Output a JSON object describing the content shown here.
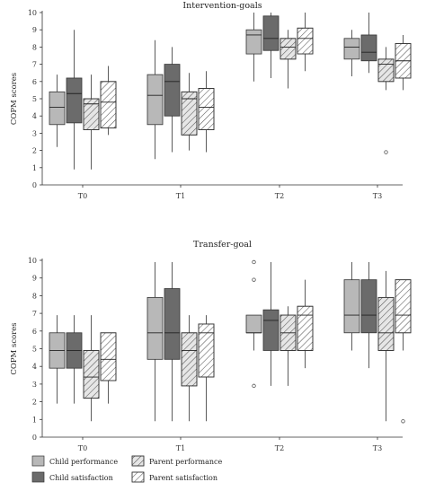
{
  "legend": [
    {
      "label": "Child performance",
      "fill": "#b8b8b8",
      "hatch": false
    },
    {
      "label": "Child satisfaction",
      "fill": "#6b6b6b",
      "hatch": false
    },
    {
      "label": "Parent performance",
      "fill": "#e6e6e6",
      "hatch": true
    },
    {
      "label": "Parent satisfaction",
      "fill": "#ffffff",
      "hatch": true
    }
  ],
  "chart_data": [
    {
      "type": "box",
      "title": "Intervention-goals",
      "ylabel": "COPM scores",
      "xlabel": "",
      "ylim": [
        0,
        10
      ],
      "yticks": [
        "0",
        "1",
        "2",
        "3",
        "4",
        "5",
        "6",
        "7",
        "8",
        "9",
        "10"
      ],
      "categories": [
        "T0",
        "T1",
        "T2",
        "T3"
      ],
      "grid": false,
      "series": [
        {
          "name": "Child performance",
          "boxes": [
            {
              "min": 2.2,
              "q1": 3.5,
              "median": 4.5,
              "q3": 5.4,
              "max": 6.4,
              "outliers": []
            },
            {
              "min": 1.5,
              "q1": 3.5,
              "median": 5.2,
              "q3": 6.4,
              "max": 8.4,
              "outliers": []
            },
            {
              "min": 6.0,
              "q1": 7.6,
              "median": 8.7,
              "q3": 9.0,
              "max": 10.0,
              "outliers": []
            },
            {
              "min": 6.3,
              "q1": 7.3,
              "median": 8.0,
              "q3": 8.5,
              "max": 9.0,
              "outliers": []
            }
          ]
        },
        {
          "name": "Child satisfaction",
          "boxes": [
            {
              "min": 0.9,
              "q1": 3.6,
              "median": 5.3,
              "q3": 6.2,
              "max": 9.0,
              "outliers": []
            },
            {
              "min": 1.9,
              "q1": 4.0,
              "median": 6.0,
              "q3": 7.0,
              "max": 8.0,
              "outliers": []
            },
            {
              "min": 6.2,
              "q1": 7.8,
              "median": 8.5,
              "q3": 9.8,
              "max": 10.0,
              "outliers": []
            },
            {
              "min": 6.5,
              "q1": 7.2,
              "median": 7.7,
              "q3": 8.7,
              "max": 10.0,
              "outliers": []
            }
          ]
        },
        {
          "name": "Parent performance",
          "boxes": [
            {
              "min": 0.9,
              "q1": 3.2,
              "median": 4.7,
              "q3": 5.0,
              "max": 6.4,
              "outliers": []
            },
            {
              "min": 2.0,
              "q1": 2.9,
              "median": 5.0,
              "q3": 5.4,
              "max": 6.5,
              "outliers": []
            },
            {
              "min": 5.6,
              "q1": 7.3,
              "median": 8.0,
              "q3": 8.5,
              "max": 9.0,
              "outliers": []
            },
            {
              "min": 5.5,
              "q1": 6.0,
              "median": 7.0,
              "q3": 7.3,
              "max": 8.0,
              "outliers": [
                1.9
              ]
            }
          ]
        },
        {
          "name": "Parent satisfaction",
          "boxes": [
            {
              "min": 2.9,
              "q1": 3.3,
              "median": 4.8,
              "q3": 6.0,
              "max": 6.9,
              "outliers": []
            },
            {
              "min": 1.9,
              "q1": 3.2,
              "median": 4.5,
              "q3": 5.6,
              "max": 6.6,
              "outliers": []
            },
            {
              "min": 6.6,
              "q1": 7.6,
              "median": 8.5,
              "q3": 9.1,
              "max": 10.0,
              "outliers": []
            },
            {
              "min": 5.5,
              "q1": 6.2,
              "median": 7.2,
              "q3": 8.2,
              "max": 8.7,
              "outliers": []
            }
          ]
        }
      ]
    },
    {
      "type": "box",
      "title": "Transfer-goal",
      "ylabel": "COPM scores",
      "xlabel": "",
      "ylim": [
        0,
        10
      ],
      "yticks": [
        "0",
        "1",
        "2",
        "3",
        "4",
        "5",
        "6",
        "7",
        "8",
        "9",
        "10"
      ],
      "categories": [
        "T0",
        "T1",
        "T2",
        "T3"
      ],
      "grid": false,
      "series": [
        {
          "name": "Child performance",
          "boxes": [
            {
              "min": 1.9,
              "q1": 3.9,
              "median": 4.9,
              "q3": 5.9,
              "max": 6.9,
              "outliers": []
            },
            {
              "min": 0.9,
              "q1": 4.4,
              "median": 5.9,
              "q3": 7.9,
              "max": 9.9,
              "outliers": []
            },
            {
              "min": 4.9,
              "q1": 5.9,
              "median": 5.9,
              "q3": 6.9,
              "max": 6.9,
              "outliers": [
                9.9,
                8.9,
                2.9
              ]
            },
            {
              "min": 4.9,
              "q1": 5.9,
              "median": 6.9,
              "q3": 8.9,
              "max": 9.9,
              "outliers": []
            }
          ]
        },
        {
          "name": "Child satisfaction",
          "boxes": [
            {
              "min": 1.9,
              "q1": 3.9,
              "median": 4.9,
              "q3": 5.9,
              "max": 6.9,
              "outliers": []
            },
            {
              "min": 0.9,
              "q1": 4.4,
              "median": 5.9,
              "q3": 8.4,
              "max": 9.9,
              "outliers": []
            },
            {
              "min": 2.9,
              "q1": 4.9,
              "median": 6.6,
              "q3": 7.2,
              "max": 9.9,
              "outliers": []
            },
            {
              "min": 3.9,
              "q1": 5.9,
              "median": 6.9,
              "q3": 8.9,
              "max": 9.9,
              "outliers": []
            }
          ]
        },
        {
          "name": "Parent performance",
          "boxes": [
            {
              "min": 0.9,
              "q1": 2.2,
              "median": 3.4,
              "q3": 4.9,
              "max": 6.9,
              "outliers": []
            },
            {
              "min": 0.9,
              "q1": 2.9,
              "median": 4.9,
              "q3": 5.9,
              "max": 6.9,
              "outliers": []
            },
            {
              "min": 2.9,
              "q1": 4.9,
              "median": 5.9,
              "q3": 6.9,
              "max": 7.4,
              "outliers": []
            },
            {
              "min": 0.9,
              "q1": 4.9,
              "median": 5.9,
              "q3": 7.9,
              "max": 9.4,
              "outliers": []
            }
          ]
        },
        {
          "name": "Parent satisfaction",
          "boxes": [
            {
              "min": 1.9,
              "q1": 3.2,
              "median": 4.4,
              "q3": 5.9,
              "max": 5.9,
              "outliers": []
            },
            {
              "min": 0.9,
              "q1": 3.4,
              "median": 5.9,
              "q3": 6.4,
              "max": 6.9,
              "outliers": []
            },
            {
              "min": 3.9,
              "q1": 4.9,
              "median": 6.9,
              "q3": 7.4,
              "max": 8.9,
              "outliers": []
            },
            {
              "min": 4.9,
              "q1": 5.9,
              "median": 6.9,
              "q3": 8.9,
              "max": 8.9,
              "outliers": [
                0.9
              ]
            }
          ]
        }
      ]
    }
  ]
}
